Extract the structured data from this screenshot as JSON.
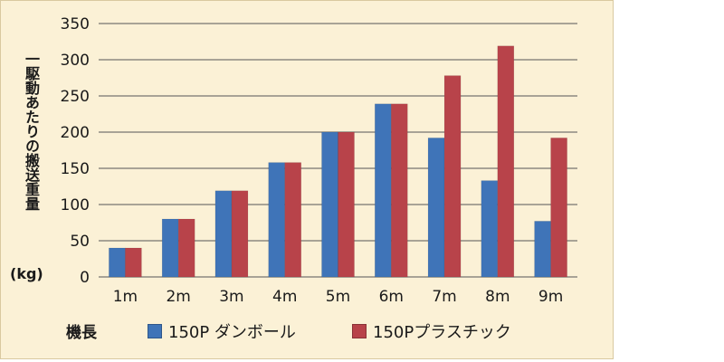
{
  "chart_data": {
    "type": "bar",
    "categories": [
      "1m",
      "2m",
      "3m",
      "4m",
      "5m",
      "6m",
      "7m",
      "8m",
      "9m"
    ],
    "series": [
      {
        "name": "150P ダンボール",
        "color": "#3f74b8",
        "values": [
          40,
          80,
          119,
          158,
          200,
          239,
          192,
          133,
          77
        ]
      },
      {
        "name": "150Pプラスチック",
        "color": "#b8434a",
        "values": [
          40,
          80,
          119,
          158,
          200,
          239,
          278,
          319,
          192
        ]
      }
    ],
    "ylim": [
      0,
      350
    ],
    "yticks": [
      0,
      50,
      100,
      150,
      200,
      250,
      300,
      350
    ],
    "ylabel": "一駆動あたりの搬送重量",
    "ylabel_unit": "(kg)",
    "xlabel": "機長",
    "grid": true,
    "legend": "bottom",
    "background": "#fbf1d6",
    "gridline_color": "#555555"
  }
}
